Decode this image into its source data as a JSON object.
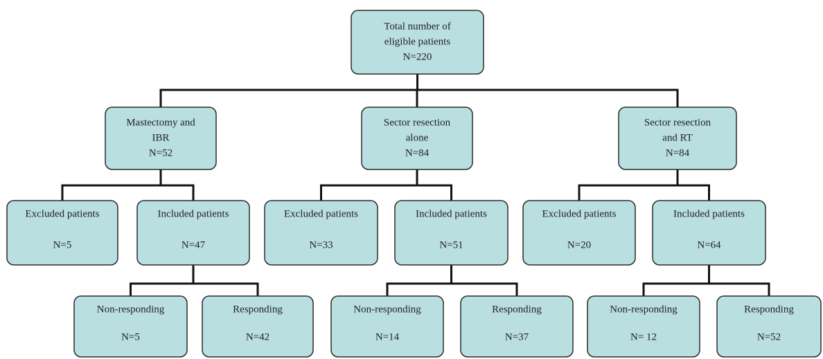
{
  "nodes": [
    {
      "lines": [
        "Total number of",
        "eligible patients",
        "N=220"
      ]
    },
    {
      "lines": [
        "Mastectomy and",
        "IBR",
        "N=52"
      ]
    },
    {
      "lines": [
        "Sector resection",
        "alone",
        "N=84"
      ]
    },
    {
      "lines": [
        "Sector resection",
        "and RT",
        "N=84"
      ]
    },
    {
      "lines": [
        "Excluded patients",
        "N=5"
      ]
    },
    {
      "lines": [
        "Included patients",
        "N=47"
      ]
    },
    {
      "lines": [
        "Excluded patients",
        "N=33"
      ]
    },
    {
      "lines": [
        "Included patients",
        "N=51"
      ]
    },
    {
      "lines": [
        "Excluded patients",
        "N=20"
      ]
    },
    {
      "lines": [
        "Included patients",
        "N=64"
      ]
    },
    {
      "lines": [
        "Non-responding",
        "N=5"
      ]
    },
    {
      "lines": [
        "Responding",
        "N=42"
      ]
    },
    {
      "lines": [
        "Non-responding",
        "N=14"
      ]
    },
    {
      "lines": [
        "Responding",
        "N=37"
      ]
    },
    {
      "lines": [
        "Non-responding",
        "N= 12"
      ]
    },
    {
      "lines": [
        "Responding",
        "N=52"
      ]
    }
  ]
}
